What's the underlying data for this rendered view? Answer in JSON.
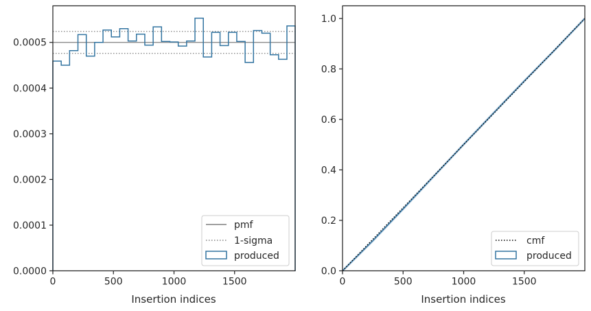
{
  "chart_data": [
    {
      "type": "step-histogram",
      "xlabel": "Insertion indices",
      "ylabel": "",
      "xlim": [
        0,
        2000
      ],
      "ylim": [
        0,
        0.00058
      ],
      "xticks": [
        0,
        500,
        1000,
        1500
      ],
      "xtick_labels": [
        "0",
        "500",
        "1000",
        "1500"
      ],
      "yticks": [
        0,
        0.0001,
        0.0002,
        0.0003,
        0.0004,
        0.0005
      ],
      "ytick_labels": [
        "0.0000",
        "0.0001",
        "0.0002",
        "0.0003",
        "0.0004",
        "0.0005"
      ],
      "grid": false,
      "legend_position": "lower right",
      "reference_lines": [
        {
          "name": "pmf",
          "y": 0.0005,
          "style": "solid",
          "color": "#808080"
        },
        {
          "name": "1-sigma",
          "y": [
            0.000476,
            0.000524
          ],
          "style": "dotted",
          "color": "#808080"
        }
      ],
      "series": [
        {
          "name": "produced",
          "color": "#3274a1",
          "bin_edges": [
            0,
            69,
            138,
            207,
            276,
            345,
            414,
            483,
            552,
            621,
            690,
            759,
            828,
            897,
            966,
            1035,
            1104,
            1173,
            1242,
            1311,
            1380,
            1449,
            1518,
            1587,
            1656,
            1725,
            1794,
            1863,
            1932,
            2000
          ],
          "values": [
            0.000459,
            0.00045,
            0.000482,
            0.000517,
            0.00047,
            0.0005,
            0.000527,
            0.000512,
            0.00053,
            0.000503,
            0.000518,
            0.000494,
            0.000534,
            0.000502,
            0.000501,
            0.000492,
            0.000503,
            0.000553,
            0.000468,
            0.000522,
            0.000493,
            0.000522,
            0.000502,
            0.000456,
            0.000526,
            0.00052,
            0.000473,
            0.000463,
            0.000536
          ]
        }
      ],
      "legend": [
        "pmf",
        "1-sigma",
        "produced"
      ]
    },
    {
      "type": "line",
      "xlabel": "Insertion indices",
      "ylabel": "",
      "xlim": [
        0,
        2000
      ],
      "ylim": [
        0,
        1.05
      ],
      "xticks": [
        0,
        500,
        1000,
        1500
      ],
      "xtick_labels": [
        "0",
        "500",
        "1000",
        "1500"
      ],
      "yticks": [
        0,
        0.2,
        0.4,
        0.6,
        0.8,
        1.0
      ],
      "ytick_labels": [
        "0.0",
        "0.2",
        "0.4",
        "0.6",
        "0.8",
        "1.0"
      ],
      "grid": false,
      "legend_position": "lower right",
      "series": [
        {
          "name": "cmf",
          "style": "dotted",
          "color": "#000000",
          "x": [
            0,
            2000
          ],
          "y": [
            0,
            1.0
          ]
        },
        {
          "name": "produced",
          "style": "solid",
          "color": "#3274a1",
          "x": [
            0,
            250,
            500,
            750,
            1000,
            1250,
            1500,
            1750,
            2000
          ],
          "y": [
            0,
            0.119,
            0.245,
            0.373,
            0.501,
            0.627,
            0.752,
            0.874,
            1.0
          ]
        }
      ],
      "legend": [
        "cmf",
        "produced"
      ]
    }
  ]
}
